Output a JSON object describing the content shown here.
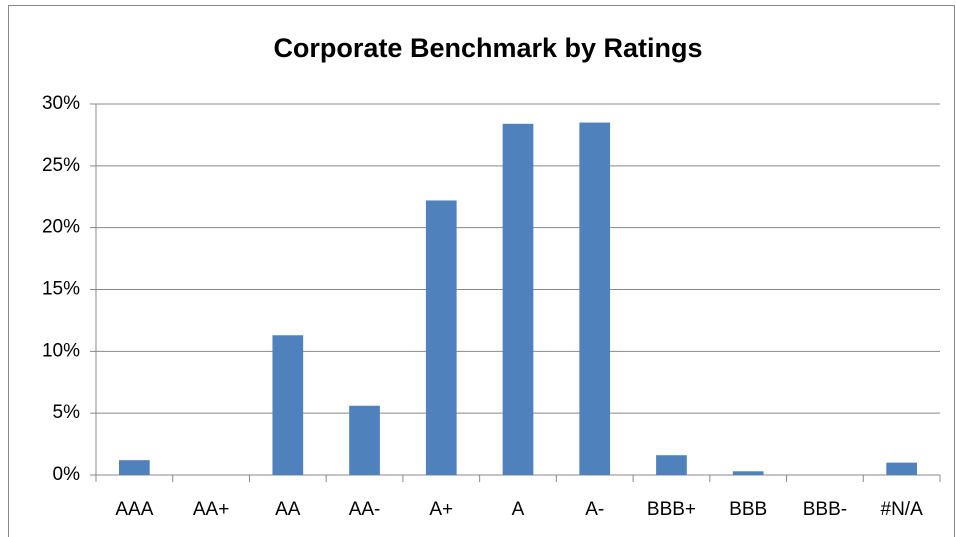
{
  "chart_data": {
    "type": "bar",
    "title": "Corporate Benchmark by Ratings",
    "categories": [
      "AAA",
      "AA+",
      "AA",
      "AA-",
      "A+",
      "A",
      "A-",
      "BBB+",
      "BBB",
      "BBB-",
      "#N/A"
    ],
    "values": [
      1.2,
      0,
      11.3,
      5.6,
      22.2,
      28.4,
      28.5,
      1.6,
      0.3,
      0,
      1.0
    ],
    "color": "#4f81bd",
    "ylim": [
      0,
      30
    ],
    "yticks": [
      {
        "value": 0,
        "label": "0%"
      },
      {
        "value": 5,
        "label": "5%"
      },
      {
        "value": 10,
        "label": "10%"
      },
      {
        "value": 15,
        "label": "15%"
      },
      {
        "value": 20,
        "label": "20%"
      },
      {
        "value": 25,
        "label": "25%"
      },
      {
        "value": 30,
        "label": "30%"
      }
    ],
    "grid": true
  }
}
